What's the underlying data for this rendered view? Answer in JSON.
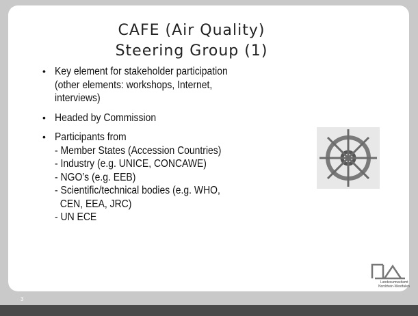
{
  "title": [
    "CAFE (Air Quality)",
    "Steering Group (1)"
  ],
  "bullets": [
    {
      "lines": [
        "Key element for stakeholder participation",
        "(other elements: workshops, Internet,",
        "interviews)"
      ]
    },
    {
      "lines": [
        "Headed by Commission"
      ]
    },
    {
      "lines": [
        "Participants from",
        "- Member States (Accession Countries)",
        "- Industry (e.g. UNICE, CONCAWE)",
        "- NGO’s (e.g. EEB)",
        "- Scientific/technical bodies (e.g. WHO,",
        "  CEN, EEA, JRC)",
        "- UN ECE"
      ]
    }
  ],
  "logo": [
    "Landesumweltamt",
    "Nordrhein-Westfalen"
  ],
  "slide_number": "3"
}
